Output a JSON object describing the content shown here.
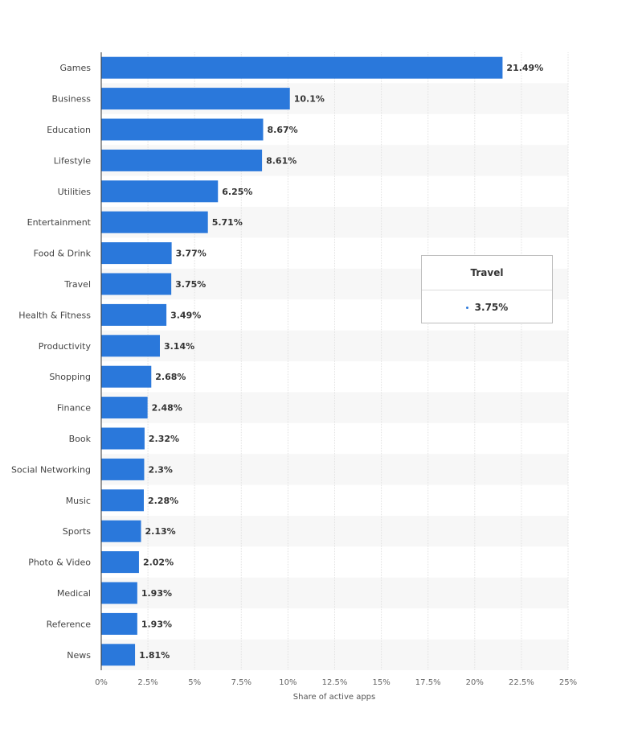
{
  "chart_data": {
    "type": "bar",
    "orientation": "horizontal",
    "categories": [
      "Games",
      "Business",
      "Education",
      "Lifestyle",
      "Utilities",
      "Entertainment",
      "Food & Drink",
      "Travel",
      "Health & Fitness",
      "Productivity",
      "Shopping",
      "Finance",
      "Book",
      "Social Networking",
      "Music",
      "Sports",
      "Photo & Video",
      "Medical",
      "Reference",
      "News"
    ],
    "values": [
      21.49,
      10.1,
      8.67,
      8.61,
      6.25,
      5.71,
      3.77,
      3.75,
      3.49,
      3.14,
      2.68,
      2.48,
      2.32,
      2.3,
      2.28,
      2.13,
      2.02,
      1.93,
      1.93,
      1.81
    ],
    "value_labels": [
      "21.49%",
      "10.1%",
      "8.67%",
      "8.61%",
      "6.25%",
      "5.71%",
      "3.77%",
      "3.75%",
      "3.49%",
      "3.14%",
      "2.68%",
      "2.48%",
      "2.32%",
      "2.3%",
      "2.28%",
      "2.13%",
      "2.02%",
      "1.93%",
      "1.93%",
      "1.81%"
    ],
    "xticks": [
      0,
      2.5,
      5,
      7.5,
      10,
      12.5,
      15,
      17.5,
      20,
      22.5,
      25
    ],
    "xtick_labels": [
      "0%",
      "2.5%",
      "5%",
      "7.5%",
      "10%",
      "12.5%",
      "15%",
      "17.5%",
      "20%",
      "22.5%",
      "25%"
    ],
    "xlim": [
      0,
      25
    ],
    "xlabel": "Share of active apps",
    "grid": true,
    "bar_color": "#2a78db",
    "alt_row_color": "#f7f7f7"
  },
  "tooltip": {
    "title": "Travel",
    "value": "3.75%"
  }
}
